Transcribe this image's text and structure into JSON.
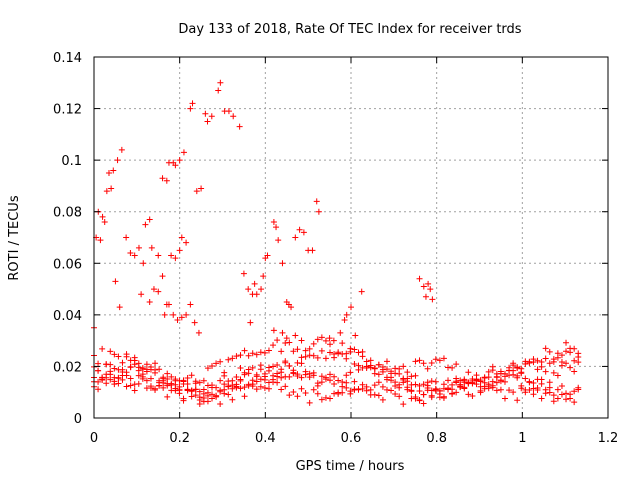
{
  "chart_data": {
    "type": "scatter",
    "title": "Day 133 of 2018, Rate Of TEC Index for receiver trds",
    "xlabel": "GPS time / hours",
    "ylabel": "ROTI / TECUs",
    "xlim": [
      0,
      1.2
    ],
    "ylim": [
      0,
      0.14
    ],
    "grid": true,
    "marker": "+",
    "color": "#ff0000",
    "xticks": [
      0,
      0.2,
      0.4,
      0.6,
      0.8,
      1,
      1.2
    ],
    "xtick_labels": [
      "0",
      "0.2",
      "0.4",
      "0.6",
      "0.8",
      "1",
      "1.2"
    ],
    "yticks": [
      0,
      0.02,
      0.04,
      0.06,
      0.08,
      0.1,
      0.12,
      0.14
    ],
    "ytick_labels": [
      "0",
      "0.02",
      "0.04",
      "0.06",
      "0.08",
      "0.1",
      "0.12",
      "0.14"
    ],
    "series": [
      {
        "name": "ROTI",
        "points": [
          [
            0.005,
            0.07
          ],
          [
            0.01,
            0.08
          ],
          [
            0.015,
            0.069
          ],
          [
            0.02,
            0.078
          ],
          [
            0.025,
            0.076
          ],
          [
            0.03,
            0.088
          ],
          [
            0.035,
            0.095
          ],
          [
            0.04,
            0.089
          ],
          [
            0.045,
            0.096
          ],
          [
            0.055,
            0.1
          ],
          [
            0.065,
            0.104
          ],
          [
            0.075,
            0.07
          ],
          [
            0.085,
            0.064
          ],
          [
            0.095,
            0.063
          ],
          [
            0.105,
            0.066
          ],
          [
            0.115,
            0.06
          ],
          [
            0.12,
            0.075
          ],
          [
            0.13,
            0.077
          ],
          [
            0.135,
            0.066
          ],
          [
            0.15,
            0.063
          ],
          [
            0.16,
            0.093
          ],
          [
            0.17,
            0.092
          ],
          [
            0.175,
            0.099
          ],
          [
            0.185,
            0.099
          ],
          [
            0.19,
            0.098
          ],
          [
            0.2,
            0.1
          ],
          [
            0.21,
            0.103
          ],
          [
            0.18,
            0.063
          ],
          [
            0.19,
            0.062
          ],
          [
            0.2,
            0.065
          ],
          [
            0.205,
            0.07
          ],
          [
            0.215,
            0.068
          ],
          [
            0.225,
            0.12
          ],
          [
            0.23,
            0.122
          ],
          [
            0.24,
            0.088
          ],
          [
            0.25,
            0.089
          ],
          [
            0.26,
            0.118
          ],
          [
            0.265,
            0.115
          ],
          [
            0.275,
            0.117
          ],
          [
            0.29,
            0.127
          ],
          [
            0.295,
            0.13
          ],
          [
            0.305,
            0.119
          ],
          [
            0.315,
            0.119
          ],
          [
            0.325,
            0.117
          ],
          [
            0.34,
            0.113
          ],
          [
            0.35,
            0.056
          ],
          [
            0.36,
            0.05
          ],
          [
            0.37,
            0.048
          ],
          [
            0.375,
            0.052
          ],
          [
            0.38,
            0.048
          ],
          [
            0.365,
            0.037
          ],
          [
            0.39,
            0.05
          ],
          [
            0.395,
            0.055
          ],
          [
            0.4,
            0.062
          ],
          [
            0.405,
            0.063
          ],
          [
            0.42,
            0.076
          ],
          [
            0.425,
            0.074
          ],
          [
            0.43,
            0.069
          ],
          [
            0.44,
            0.06
          ],
          [
            0.45,
            0.045
          ],
          [
            0.455,
            0.044
          ],
          [
            0.46,
            0.043
          ],
          [
            0.47,
            0.07
          ],
          [
            0.48,
            0.073
          ],
          [
            0.49,
            0.072
          ],
          [
            0.5,
            0.065
          ],
          [
            0.51,
            0.065
          ],
          [
            0.52,
            0.084
          ],
          [
            0.525,
            0.08
          ],
          [
            0.0,
            0.035
          ],
          [
            0.05,
            0.053
          ],
          [
            0.06,
            0.043
          ],
          [
            0.11,
            0.048
          ],
          [
            0.13,
            0.045
          ],
          [
            0.14,
            0.05
          ],
          [
            0.15,
            0.049
          ],
          [
            0.16,
            0.055
          ],
          [
            0.165,
            0.04
          ],
          [
            0.17,
            0.044
          ],
          [
            0.175,
            0.044
          ],
          [
            0.185,
            0.04
          ],
          [
            0.195,
            0.038
          ],
          [
            0.205,
            0.039
          ],
          [
            0.215,
            0.04
          ],
          [
            0.225,
            0.044
          ],
          [
            0.235,
            0.037
          ],
          [
            0.245,
            0.033
          ],
          [
            0.42,
            0.034
          ],
          [
            0.44,
            0.033
          ],
          [
            0.45,
            0.031
          ],
          [
            0.47,
            0.032
          ],
          [
            0.55,
            0.031
          ],
          [
            0.56,
            0.03
          ],
          [
            0.575,
            0.033
          ],
          [
            0.585,
            0.038
          ],
          [
            0.59,
            0.04
          ],
          [
            0.6,
            0.043
          ],
          [
            0.61,
            0.032
          ],
          [
            0.625,
            0.049
          ],
          [
            0.76,
            0.054
          ],
          [
            0.77,
            0.051
          ],
          [
            0.775,
            0.047
          ],
          [
            0.78,
            0.052
          ],
          [
            0.785,
            0.05
          ],
          [
            0.79,
            0.046
          ]
        ]
      }
    ]
  }
}
